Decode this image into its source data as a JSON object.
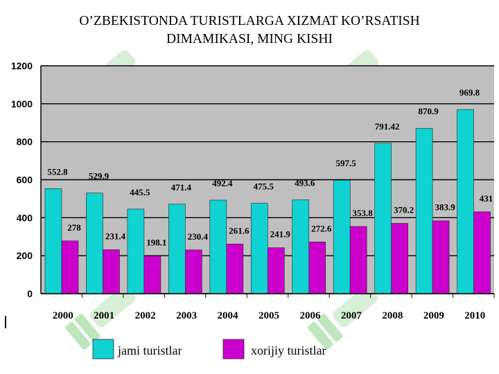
{
  "title_line1": "O’ZBEKISTONDA TURISTLARGA XIZMAT KO’RSATISH",
  "title_line2": "DIMAMIKASI, MING KISHI",
  "watermark_icon": "soft-logo-watermark",
  "colors": {
    "plot_bg": "#BFBFBF",
    "series1": "#11D2D2",
    "series2": "#CC00CC",
    "grid": "#000000"
  },
  "chart_data": {
    "type": "bar",
    "title": "O’ZBEKISTONDA TURISTLARGA XIZMAT KO’RSATISH DIMAMIKASI, MING KISHI",
    "categories": [
      "2000",
      "2001",
      "2002",
      "2003",
      "2004",
      "2005",
      "2006",
      "2007",
      "2008",
      "2009",
      "2010"
    ],
    "series": [
      {
        "name": "jami turistlar",
        "values": [
          552.8,
          529.9,
          445.5,
          471.4,
          492.4,
          475.5,
          493.6,
          597.5,
          791.42,
          870.9,
          969.8
        ],
        "labels": [
          "552.8",
          "529.9",
          "445.5",
          "471.4",
          "492.4",
          "475.5",
          "493.6",
          "597.5",
          "791.42",
          "870.9",
          "969.8"
        ]
      },
      {
        "name": "xorijiy turistlar",
        "values": [
          278,
          231.4,
          198.1,
          230.4,
          261.6,
          241.9,
          272.6,
          353.8,
          370.2,
          383.9,
          431
        ],
        "labels": [
          "278",
          "231.4",
          "198.1",
          "230.4",
          "261.6",
          "241.9",
          "272.6",
          "353.8",
          "370.2",
          "383.9",
          "431"
        ]
      }
    ],
    "ylim": [
      0,
      1200
    ],
    "yticks": [
      "0",
      "200",
      "400",
      "600",
      "800",
      "1000",
      "1200"
    ],
    "grid": true,
    "legend_position": "bottom",
    "xlabel": "",
    "ylabel": ""
  }
}
